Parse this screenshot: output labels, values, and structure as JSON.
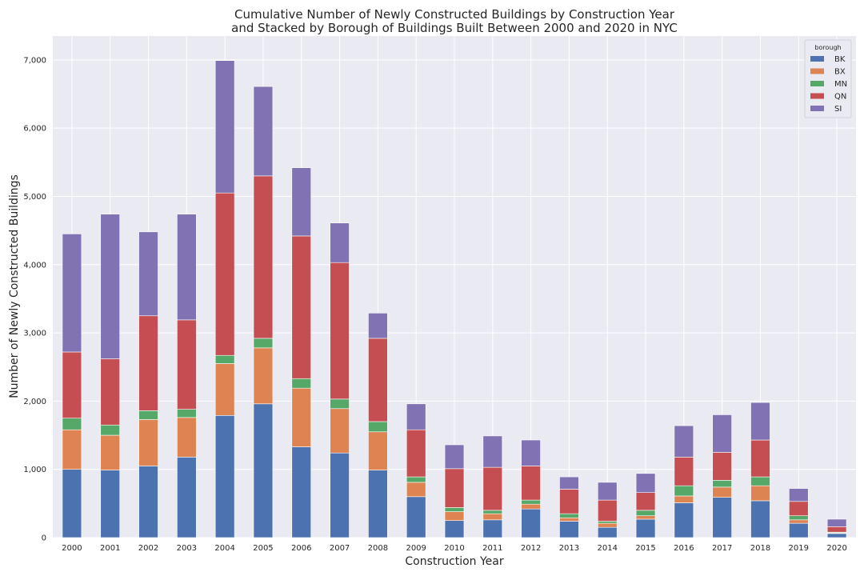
{
  "chart_data": {
    "type": "bar",
    "stacked": true,
    "title_line1": "Cumulative Number of Newly Constructed Buildings by Construction Year",
    "title_line2": "and Stacked by Borough of Buildings Built Between 2000 and 2020 in NYC",
    "xlabel": "Construction Year",
    "ylabel": "Number of Newly Constructed Buildings",
    "ylim": [
      0,
      7350
    ],
    "yticks": [
      0,
      1000,
      2000,
      3000,
      4000,
      5000,
      6000,
      7000
    ],
    "ytick_labels": [
      "0",
      "1,000",
      "2,000",
      "3,000",
      "4,000",
      "5,000",
      "6,000",
      "7,000"
    ],
    "grid": true,
    "legend_title": "borough",
    "legend_position": "top-right",
    "categories": [
      "2000",
      "2001",
      "2002",
      "2003",
      "2004",
      "2005",
      "2006",
      "2007",
      "2008",
      "2009",
      "2010",
      "2011",
      "2012",
      "2013",
      "2014",
      "2015",
      "2016",
      "2017",
      "2018",
      "2019",
      "2020"
    ],
    "series": [
      {
        "name": "BK",
        "color": "#4c72b0",
        "values": [
          1000,
          990,
          1050,
          1180,
          1790,
          1960,
          1330,
          1240,
          990,
          600,
          250,
          260,
          420,
          240,
          150,
          270,
          510,
          590,
          540,
          210,
          60
        ]
      },
      {
        "name": "BX",
        "color": "#dd8452",
        "values": [
          580,
          510,
          680,
          580,
          760,
          820,
          860,
          650,
          560,
          210,
          130,
          90,
          70,
          50,
          60,
          50,
          100,
          150,
          220,
          50,
          10
        ]
      },
      {
        "name": "MN",
        "color": "#55a868",
        "values": [
          170,
          150,
          130,
          120,
          120,
          140,
          140,
          140,
          150,
          80,
          60,
          50,
          60,
          60,
          30,
          80,
          150,
          100,
          130,
          60,
          10
        ]
      },
      {
        "name": "QN",
        "color": "#c44e52",
        "values": [
          970,
          970,
          1390,
          1310,
          2380,
          2380,
          2090,
          2000,
          1220,
          690,
          570,
          630,
          500,
          360,
          310,
          260,
          420,
          410,
          540,
          210,
          80
        ]
      },
      {
        "name": "SI",
        "color": "#8172b3",
        "values": [
          1730,
          2120,
          1230,
          1550,
          1940,
          1310,
          1000,
          580,
          370,
          380,
          350,
          460,
          380,
          180,
          260,
          280,
          460,
          550,
          550,
          190,
          110
        ]
      }
    ]
  }
}
